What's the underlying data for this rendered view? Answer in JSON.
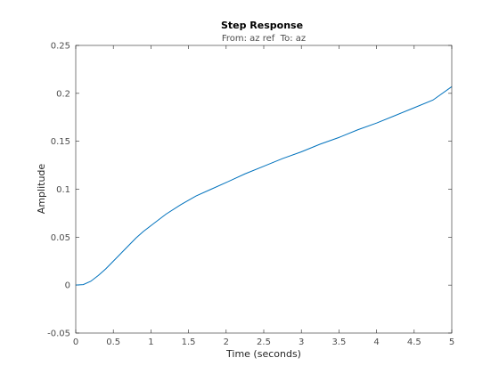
{
  "chart_data": {
    "type": "line",
    "title": "Step Response",
    "subtitle": "From: az ref  To: az",
    "xlabel": "Time (seconds)",
    "ylabel": "Amplitude",
    "xlim": [
      0,
      5
    ],
    "ylim": [
      -0.05,
      0.25
    ],
    "xticks": [
      0,
      0.5,
      1,
      1.5,
      2,
      2.5,
      3,
      3.5,
      4,
      4.5,
      5
    ],
    "xtick_labels": [
      "0",
      "0.5",
      "1",
      "1.5",
      "2",
      "2.5",
      "3",
      "3.5",
      "4",
      "4.5",
      "5"
    ],
    "yticks": [
      -0.05,
      0,
      0.05,
      0.1,
      0.15,
      0.2,
      0.25
    ],
    "ytick_labels": [
      "-0.05",
      "0",
      "0.05",
      "0.1",
      "0.15",
      "0.2",
      "0.25"
    ],
    "grid": false,
    "line_color": "#0072bd",
    "axes_color": "#262626",
    "series": [
      {
        "x": [
          0,
          0.1,
          0.2,
          0.3,
          0.4,
          0.5,
          0.6,
          0.7,
          0.8,
          0.9,
          1.0,
          1.2,
          1.4,
          1.6,
          1.8,
          2.0,
          2.25,
          2.5,
          2.75,
          3.0,
          3.25,
          3.5,
          3.75,
          4.0,
          4.25,
          4.5,
          4.75,
          5.0
        ],
        "y": [
          0,
          0.0005,
          0.004,
          0.01,
          0.017,
          0.025,
          0.033,
          0.041,
          0.049,
          0.056,
          0.062,
          0.074,
          0.084,
          0.093,
          0.1,
          0.107,
          0.116,
          0.124,
          0.132,
          0.139,
          0.147,
          0.154,
          0.162,
          0.169,
          0.177,
          0.185,
          0.193,
          0.207
        ]
      }
    ]
  }
}
